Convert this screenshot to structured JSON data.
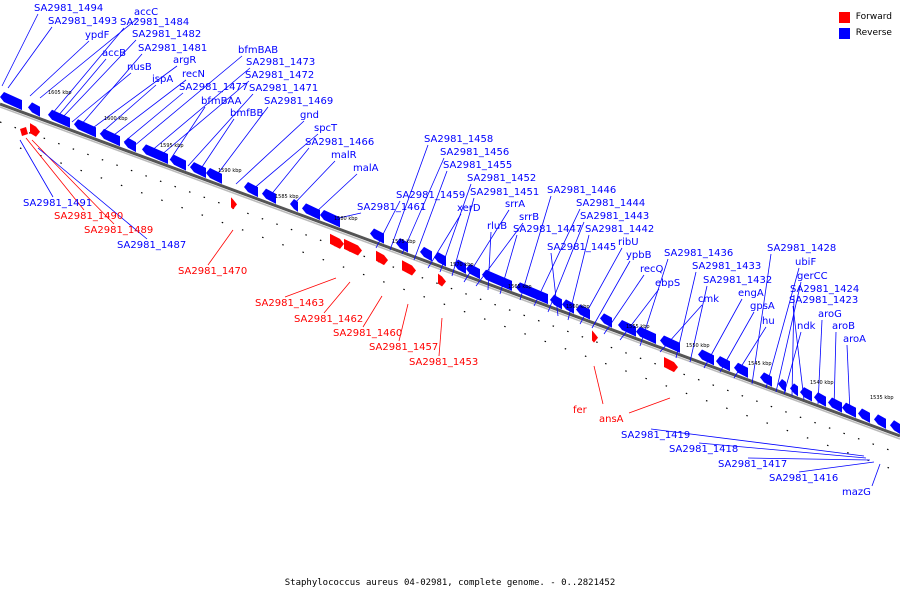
{
  "legend": {
    "forward_label": "Forward",
    "reverse_label": "Reverse",
    "forward_color": "#ff0000",
    "reverse_color": "#0000ff"
  },
  "caption": "Staphylococcus aureus 04-02981, complete genome. - 0..2821452",
  "scale_ticks": [
    "1605 kbp",
    "1600 kbp",
    "1595 kbp",
    "1590 kbp",
    "1585 kbp",
    "1580 kbp",
    "1575 kbp",
    "1570 kbp",
    "1565 kbp",
    "1560 kbp",
    "1555 kbp",
    "1550 kbp",
    "1545 kbp",
    "1540 kbp",
    "1535 kbp"
  ],
  "reverse_genes": [
    "SA2981_1494",
    "SA2981_1493",
    "ypdF",
    "accC",
    "SA2981_1484",
    "accB",
    "SA2981_1482",
    "nusB",
    "SA2981_1481",
    "argR",
    "ispA",
    "recN",
    "SA2981_1477",
    "bfmBAB",
    "SA2981_1473",
    "SA2981_1472",
    "bfmBAA",
    "SA2981_1471",
    "bmfBB",
    "SA2981_1469",
    "gnd",
    "spcT",
    "SA2981_1466",
    "malR",
    "malA",
    "SA2981_1461",
    "SA2981_1459",
    "SA2981_1458",
    "SA2981_1456",
    "SA2981_1455",
    "xerD",
    "SA2981_1452",
    "SA2981_1451",
    "srrA",
    "srrB",
    "rluB",
    "SA2981_1447",
    "SA2981_1446",
    "SA2981_1444",
    "SA2981_1443",
    "SA2981_1445",
    "SA2981_1442",
    "ribU",
    "ypbB",
    "recQ",
    "ebpS",
    "SA2981_1436",
    "cmk",
    "SA2981_1433",
    "SA2981_1432",
    "engA",
    "gpsA",
    "hu",
    "SA2981_1428",
    "ubiF",
    "gerCC",
    "ndk",
    "SA2981_1424",
    "SA2981_1423",
    "aroG",
    "aroB",
    "aroA",
    "SA2981_1491",
    "SA2981_1487",
    "SA2981_1419",
    "SA2981_1418",
    "SA2981_1417",
    "SA2981_1416",
    "mazG"
  ],
  "forward_genes": [
    "SA2981_1490",
    "SA2981_1489",
    "SA2981_1470",
    "SA2981_1463",
    "SA2981_1462",
    "SA2981_1460",
    "SA2981_1457",
    "SA2981_1453",
    "fer",
    "ansA"
  ]
}
